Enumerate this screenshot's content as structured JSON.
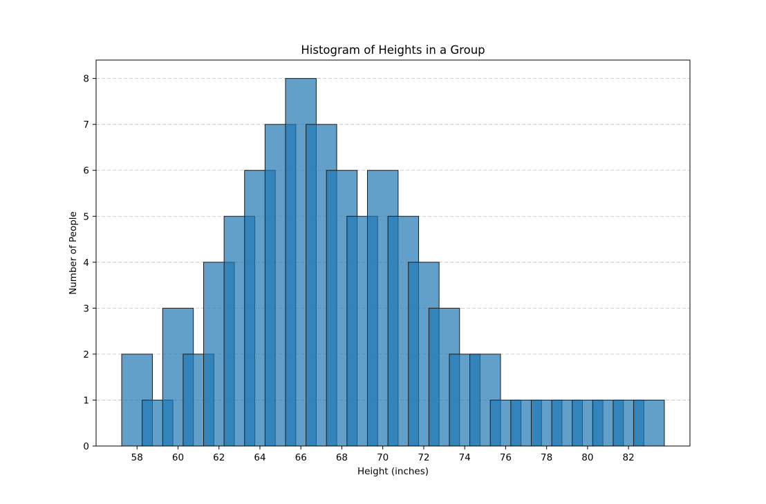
{
  "chart_data": {
    "type": "bar",
    "title": "Histogram of Heights in a Group",
    "xlabel": "Height (inches)",
    "ylabel": "Number of People",
    "xlim": [
      56.0,
      85.0
    ],
    "ylim": [
      0,
      8.4
    ],
    "xticks": [
      58,
      60,
      62,
      64,
      66,
      68,
      70,
      72,
      74,
      76,
      78,
      80,
      82
    ],
    "yticks": [
      0,
      1,
      2,
      3,
      4,
      5,
      6,
      7,
      8
    ],
    "grid": "y-dashed",
    "bar_width": 1.5,
    "colors": {
      "bar": "#1f77b4",
      "edge": "#1a1a1a",
      "grid": "#b0b0b0"
    },
    "series": [
      {
        "values": [
          {
            "x": 58,
            "height": 2
          },
          {
            "x": 59,
            "height": 1
          },
          {
            "x": 60,
            "height": 3
          },
          {
            "x": 61,
            "height": 2
          },
          {
            "x": 62,
            "height": 4
          },
          {
            "x": 63,
            "height": 5
          },
          {
            "x": 64,
            "height": 6
          },
          {
            "x": 65,
            "height": 7
          },
          {
            "x": 66,
            "height": 8
          },
          {
            "x": 67,
            "height": 7
          },
          {
            "x": 68,
            "height": 6
          },
          {
            "x": 69,
            "height": 5
          },
          {
            "x": 70,
            "height": 6
          },
          {
            "x": 71,
            "height": 5
          },
          {
            "x": 72,
            "height": 4
          },
          {
            "x": 73,
            "height": 3
          },
          {
            "x": 74,
            "height": 2
          },
          {
            "x": 75,
            "height": 2
          },
          {
            "x": 76,
            "height": 1
          },
          {
            "x": 77,
            "height": 1
          },
          {
            "x": 78,
            "height": 1
          },
          {
            "x": 79,
            "height": 1
          },
          {
            "x": 80,
            "height": 1
          },
          {
            "x": 81,
            "height": 1
          },
          {
            "x": 82,
            "height": 1
          },
          {
            "x": 83,
            "height": 1
          }
        ]
      }
    ]
  }
}
